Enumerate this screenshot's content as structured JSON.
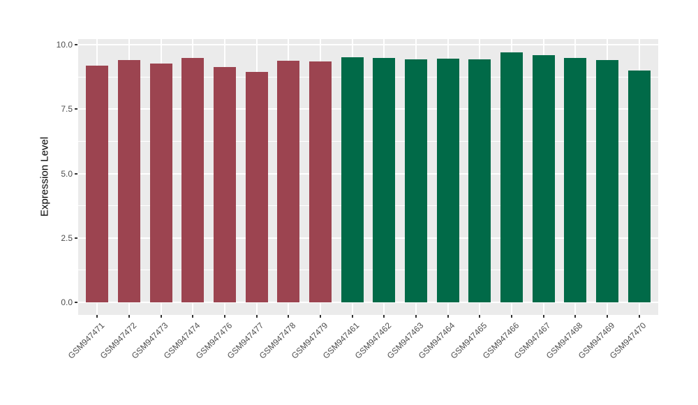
{
  "chart_data": {
    "type": "bar",
    "ylabel": "Expression Level",
    "ylim": [
      0,
      10
    ],
    "yticks": [
      {
        "value": 0,
        "label": "0.0"
      },
      {
        "value": 2.5,
        "label": "2.5"
      },
      {
        "value": 5,
        "label": "5.0"
      },
      {
        "value": 7.5,
        "label": "7.5"
      },
      {
        "value": 10,
        "label": "10.0"
      }
    ],
    "yticks_minor": [
      1.25,
      3.75,
      6.25,
      8.75
    ],
    "grid": true,
    "legend": "none",
    "categories": [
      "GSM947471",
      "GSM947472",
      "GSM947473",
      "GSM947474",
      "GSM947476",
      "GSM947477",
      "GSM947478",
      "GSM947479",
      "GSM947461",
      "GSM947462",
      "GSM947463",
      "GSM947464",
      "GSM947465",
      "GSM947466",
      "GSM947467",
      "GSM947468",
      "GSM947469",
      "GSM947470"
    ],
    "values": [
      9.19,
      9.4,
      9.28,
      9.48,
      9.14,
      8.95,
      9.39,
      9.36,
      9.51,
      9.48,
      9.42,
      9.46,
      9.44,
      9.71,
      9.6,
      9.48,
      9.41,
      8.99
    ],
    "bar_groups": [
      {
        "color_key": "bar_red",
        "start": 0,
        "count": 8
      },
      {
        "color_key": "bar_green",
        "start": 8,
        "count": 10
      }
    ]
  },
  "colors": {
    "bar_red": "#9C4450",
    "bar_green": "#016A48",
    "panel_background": "#EBEBEB",
    "gridline": "#FFFFFF",
    "axis_text": "#4D4D4D",
    "axis_title": "#000000",
    "tick_mark": "#333333"
  }
}
